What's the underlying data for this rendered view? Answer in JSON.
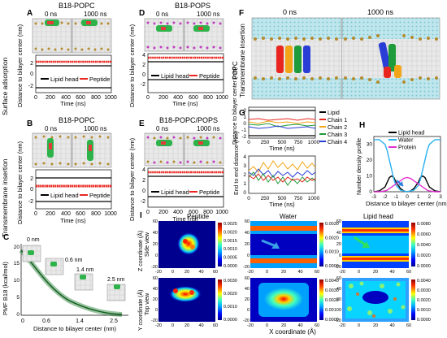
{
  "panels": {
    "A": {
      "letter": "A",
      "title": "B18-POPC",
      "t0": "0 ns",
      "t1": "1000 ns"
    },
    "B": {
      "letter": "B",
      "title": "B18-POPC",
      "t0": "0 ns",
      "t1": "1000 ns"
    },
    "D": {
      "letter": "D",
      "title": "B18-POPS",
      "t0": "0 ns",
      "t1": "1000 ns"
    },
    "E": {
      "letter": "E",
      "title": "B18-POPC/POPS",
      "t0": "0 ns",
      "t1": "1000 ns"
    },
    "F": {
      "letter": "F",
      "t0": "0 ns",
      "t1": "1000 ns",
      "side_label": "POPC",
      "side_label2": "Transmembrane insertion"
    },
    "C": {
      "letter": "C"
    },
    "G": {
      "letter": "G"
    },
    "H": {
      "letter": "H"
    },
    "I": {
      "letter": "I"
    }
  },
  "side_labels": {
    "surface": "Surface adsorption",
    "transmembrane": "Transmembrane insertion"
  },
  "distance_plots": {
    "ylabel": "Distance to bilayer center (nm)",
    "xlabel": "Time (ns)",
    "xticks": [
      "0",
      "200",
      "400",
      "600",
      "800",
      "1000"
    ],
    "yticks_A": [
      "2",
      "0",
      "-2"
    ],
    "yticks_D": [
      "4",
      "2",
      "0",
      "-2"
    ],
    "legend_lipid": "Lipid head",
    "legend_peptide": "Peptide"
  },
  "panel_C": {
    "ylabel": "PMF B18 (kcal/mol)",
    "xlabel": "Distance to bilayer center (nm)",
    "yticks": [
      "20",
      "15",
      "10",
      "5",
      "0"
    ],
    "xticks": [
      "0",
      "0.6",
      "1.4",
      "2.5"
    ],
    "snapshots": [
      "0 nm",
      "0.6 nm",
      "1.4 nm",
      "2.5 nm"
    ]
  },
  "panel_G": {
    "ylabel1": "Distance to bilayer center (nm)",
    "ylabel2": "End to end distance (nm)",
    "xlabel": "Time (ns)",
    "xticks": [
      "0",
      "250",
      "500",
      "750",
      "1000"
    ],
    "yticks1": [
      "2",
      "1",
      "0",
      "-1",
      "-2"
    ],
    "yticks2": [
      "4",
      "3",
      "2",
      "1",
      "0"
    ],
    "legend": [
      "Lipid",
      "Chain 1",
      "Chain 2",
      "Chain 3",
      "Chain 4"
    ],
    "colors": [
      "#000000",
      "#e8261f",
      "#f2a516",
      "#1e9b3a",
      "#2a3ed6"
    ]
  },
  "chart_data": [
    {
      "type": "line",
      "xlabel": "Distance to bilayer center (nm)",
      "ylabel": "Number density profile",
      "x": [
        -3,
        -2.5,
        -2,
        -1.8,
        -1.6,
        -1.4,
        -1.2,
        -1,
        -0.6,
        -0.3,
        0,
        0.3,
        0.6,
        1,
        1.2,
        1.4,
        1.6,
        1.8,
        2,
        2.5,
        3
      ],
      "series": [
        {
          "name": "Lipid head",
          "color": "#000000",
          "values": [
            0,
            0.5,
            3,
            6,
            9,
            10,
            9,
            6,
            2,
            0.5,
            0,
            0.5,
            2,
            6,
            9,
            10,
            9,
            6,
            3,
            0.5,
            0
          ]
        },
        {
          "name": "Water",
          "color": "#2ab0f0",
          "values": [
            33,
            33,
            30,
            26,
            20,
            14,
            8,
            4,
            1,
            0.5,
            0,
            0.5,
            1,
            4,
            8,
            14,
            20,
            26,
            30,
            33,
            33
          ]
        },
        {
          "name": "Protein",
          "color": "#e030d0",
          "values": [
            0,
            0,
            0.5,
            1,
            2,
            3,
            4,
            5,
            7,
            8.5,
            9,
            8.5,
            7,
            5,
            4,
            3,
            2,
            1,
            0.5,
            0,
            0
          ]
        }
      ],
      "xticks": [
        "-3",
        "-2",
        "-1",
        "0",
        "1",
        "2",
        "3"
      ],
      "yticks": [
        "0",
        "10",
        "20",
        "30"
      ],
      "ylim": [
        0,
        35
      ],
      "xlim": [
        -3,
        3
      ]
    }
  ],
  "panel_I": {
    "titles": [
      "Peptide",
      "Water",
      "Lipid head"
    ],
    "ylabel_top": "Z coordinate (Å)",
    "ylabel_top2": "Side view",
    "ylabel_bottom": "Y coordinate (Å)",
    "ylabel_bottom2": "Top view",
    "xlabel": "X coordinate (Å)",
    "xticks": [
      "-20",
      "0",
      "20",
      "40",
      "60"
    ],
    "yticks": [
      "60",
      "50",
      "40",
      "30",
      "20",
      "10",
      "0",
      "-10",
      "-20"
    ],
    "cbars": [
      [
        "0.0025",
        "0.0020",
        "0.0015",
        "0.0010",
        "0.0005",
        "0.0000"
      ],
      [
        "0.0030",
        "0.0020",
        "0.0010",
        "0.0000"
      ],
      [
        "0.0080",
        "0.0060",
        "0.0040",
        "0.0020",
        "0.0000"
      ],
      [
        "0.0030",
        "0.0020",
        "0.0010",
        "0.0000"
      ],
      [
        "0.0040",
        "0.0030",
        "0.0020",
        "0.0010",
        "0.0000"
      ],
      [
        "0.0040",
        "0.0030",
        "0.0020",
        "0.0010",
        "0.0000"
      ]
    ]
  },
  "colors": {
    "lipid_line": "#000000",
    "peptide_line": "#e8261f",
    "jet_dark": "#00008f"
  }
}
